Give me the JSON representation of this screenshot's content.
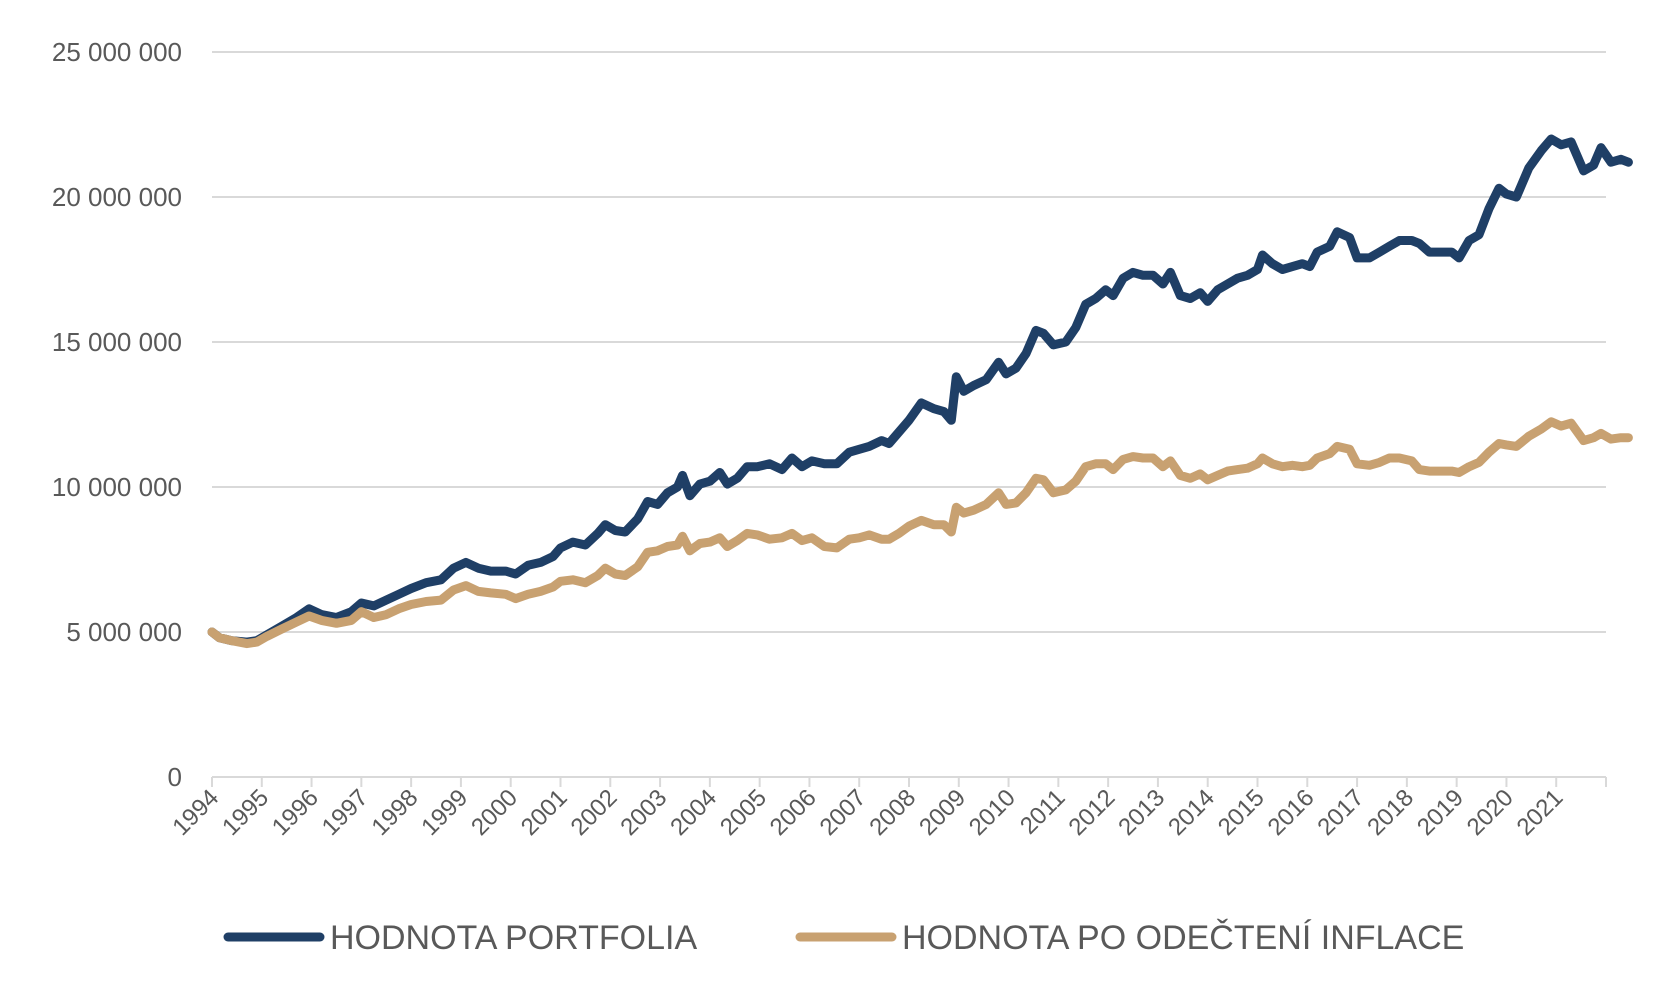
{
  "chart_data": {
    "type": "line",
    "title": "",
    "xlabel": "",
    "ylabel": "",
    "ylim": [
      0,
      25000000
    ],
    "xlim": [
      1994,
      2022
    ],
    "y_ticks": [
      0,
      5000000,
      10000000,
      15000000,
      20000000,
      25000000
    ],
    "y_tick_labels": [
      "0",
      "5 000 000",
      "10 000 000",
      "15 000 000",
      "20 000 000",
      "25 000 000"
    ],
    "x_ticks": [
      1994,
      1995,
      1996,
      1997,
      1998,
      1999,
      2000,
      2001,
      2002,
      2003,
      2004,
      2005,
      2006,
      2007,
      2008,
      2009,
      2010,
      2011,
      2012,
      2013,
      2014,
      2015,
      2016,
      2017,
      2018,
      2019,
      2020,
      2021
    ],
    "x_tick_labels": [
      "1994",
      "1995",
      "1996",
      "1997",
      "1998",
      "1999",
      "2000",
      "2001",
      "2002",
      "2003",
      "2004",
      "2005",
      "2006",
      "2007",
      "2008",
      "2009",
      "2010",
      "2011",
      "2012",
      "2013",
      "2014",
      "2015",
      "2016",
      "2017",
      "2018",
      "2019",
      "2020",
      "2021"
    ],
    "grid": true,
    "legend_position": "bottom",
    "series": [
      {
        "name": "HODNOTA PORTFOLIA",
        "color": "#1f3f66",
        "points": [
          [
            1994.0,
            5000000
          ],
          [
            1994.15,
            4800000
          ],
          [
            1994.4,
            4700000
          ],
          [
            1994.7,
            4650000
          ],
          [
            1994.9,
            4700000
          ],
          [
            1995.1,
            4900000
          ],
          [
            1995.4,
            5200000
          ],
          [
            1995.7,
            5500000
          ],
          [
            1995.95,
            5800000
          ],
          [
            1996.2,
            5600000
          ],
          [
            1996.5,
            5500000
          ],
          [
            1996.8,
            5700000
          ],
          [
            1997.0,
            6000000
          ],
          [
            1997.25,
            5900000
          ],
          [
            1997.5,
            6100000
          ],
          [
            1997.75,
            6300000
          ],
          [
            1998.0,
            6500000
          ],
          [
            1998.3,
            6700000
          ],
          [
            1998.6,
            6800000
          ],
          [
            1998.85,
            7200000
          ],
          [
            1999.1,
            7400000
          ],
          [
            1999.35,
            7200000
          ],
          [
            1999.6,
            7100000
          ],
          [
            1999.9,
            7100000
          ],
          [
            2000.1,
            7000000
          ],
          [
            2000.35,
            7300000
          ],
          [
            2000.6,
            7400000
          ],
          [
            2000.85,
            7600000
          ],
          [
            2001.0,
            7900000
          ],
          [
            2001.25,
            8100000
          ],
          [
            2001.5,
            8000000
          ],
          [
            2001.75,
            8400000
          ],
          [
            2001.9,
            8700000
          ],
          [
            2002.1,
            8500000
          ],
          [
            2002.3,
            8450000
          ],
          [
            2002.55,
            8900000
          ],
          [
            2002.75,
            9500000
          ],
          [
            2002.95,
            9400000
          ],
          [
            2003.15,
            9800000
          ],
          [
            2003.35,
            10000000
          ],
          [
            2003.45,
            10400000
          ],
          [
            2003.6,
            9700000
          ],
          [
            2003.8,
            10100000
          ],
          [
            2004.0,
            10200000
          ],
          [
            2004.2,
            10500000
          ],
          [
            2004.35,
            10100000
          ],
          [
            2004.55,
            10300000
          ],
          [
            2004.75,
            10700000
          ],
          [
            2004.95,
            10700000
          ],
          [
            2005.2,
            10800000
          ],
          [
            2005.45,
            10600000
          ],
          [
            2005.65,
            11000000
          ],
          [
            2005.85,
            10700000
          ],
          [
            2006.05,
            10900000
          ],
          [
            2006.3,
            10800000
          ],
          [
            2006.55,
            10800000
          ],
          [
            2006.8,
            11200000
          ],
          [
            2007.0,
            11300000
          ],
          [
            2007.2,
            11400000
          ],
          [
            2007.45,
            11600000
          ],
          [
            2007.6,
            11500000
          ],
          [
            2007.8,
            11900000
          ],
          [
            2008.0,
            12300000
          ],
          [
            2008.25,
            12900000
          ],
          [
            2008.5,
            12700000
          ],
          [
            2008.7,
            12600000
          ],
          [
            2008.85,
            12300000
          ],
          [
            2008.95,
            13800000
          ],
          [
            2009.1,
            13300000
          ],
          [
            2009.3,
            13500000
          ],
          [
            2009.55,
            13700000
          ],
          [
            2009.8,
            14300000
          ],
          [
            2009.95,
            13900000
          ],
          [
            2010.15,
            14100000
          ],
          [
            2010.35,
            14600000
          ],
          [
            2010.55,
            15400000
          ],
          [
            2010.7,
            15300000
          ],
          [
            2010.9,
            14900000
          ],
          [
            2011.15,
            15000000
          ],
          [
            2011.35,
            15500000
          ],
          [
            2011.55,
            16300000
          ],
          [
            2011.75,
            16500000
          ],
          [
            2011.95,
            16800000
          ],
          [
            2012.1,
            16600000
          ],
          [
            2012.3,
            17200000
          ],
          [
            2012.5,
            17400000
          ],
          [
            2012.7,
            17300000
          ],
          [
            2012.9,
            17300000
          ],
          [
            2013.1,
            17000000
          ],
          [
            2013.25,
            17400000
          ],
          [
            2013.45,
            16600000
          ],
          [
            2013.65,
            16500000
          ],
          [
            2013.85,
            16700000
          ],
          [
            2014.0,
            16400000
          ],
          [
            2014.2,
            16800000
          ],
          [
            2014.4,
            17000000
          ],
          [
            2014.6,
            17200000
          ],
          [
            2014.8,
            17300000
          ],
          [
            2015.0,
            17500000
          ],
          [
            2015.1,
            18000000
          ],
          [
            2015.3,
            17700000
          ],
          [
            2015.5,
            17500000
          ],
          [
            2015.7,
            17600000
          ],
          [
            2015.9,
            17700000
          ],
          [
            2016.05,
            17600000
          ],
          [
            2016.2,
            18100000
          ],
          [
            2016.45,
            18300000
          ],
          [
            2016.6,
            18800000
          ],
          [
            2016.85,
            18600000
          ],
          [
            2017.0,
            17900000
          ],
          [
            2017.25,
            17900000
          ],
          [
            2017.45,
            18100000
          ],
          [
            2017.65,
            18300000
          ],
          [
            2017.85,
            18500000
          ],
          [
            2018.1,
            18500000
          ],
          [
            2018.25,
            18400000
          ],
          [
            2018.45,
            18100000
          ],
          [
            2018.7,
            18100000
          ],
          [
            2018.9,
            18100000
          ],
          [
            2019.05,
            17900000
          ],
          [
            2019.25,
            18500000
          ],
          [
            2019.45,
            18700000
          ],
          [
            2019.65,
            19600000
          ],
          [
            2019.85,
            20300000
          ],
          [
            2020.0,
            20100000
          ],
          [
            2020.2,
            20000000
          ],
          [
            2020.45,
            21000000
          ],
          [
            2020.7,
            21600000
          ],
          [
            2020.9,
            22000000
          ],
          [
            2021.1,
            21800000
          ],
          [
            2021.3,
            21900000
          ],
          [
            2021.55,
            20900000
          ],
          [
            2021.75,
            21100000
          ],
          [
            2021.9,
            21700000
          ],
          [
            2022.1,
            21200000
          ],
          [
            2022.3,
            21300000
          ],
          [
            2022.45,
            21200000
          ]
        ]
      },
      {
        "name": "HODNOTA PO ODEČTENÍ INFLACE",
        "color": "#c8a171",
        "points": [
          [
            1994.0,
            5000000
          ],
          [
            1994.15,
            4800000
          ],
          [
            1994.4,
            4700000
          ],
          [
            1994.7,
            4600000
          ],
          [
            1994.9,
            4650000
          ],
          [
            1995.1,
            4850000
          ],
          [
            1995.4,
            5100000
          ],
          [
            1995.7,
            5350000
          ],
          [
            1995.95,
            5550000
          ],
          [
            1996.2,
            5400000
          ],
          [
            1996.5,
            5300000
          ],
          [
            1996.8,
            5400000
          ],
          [
            1997.0,
            5700000
          ],
          [
            1997.25,
            5500000
          ],
          [
            1997.5,
            5600000
          ],
          [
            1997.75,
            5800000
          ],
          [
            1998.0,
            5950000
          ],
          [
            1998.3,
            6050000
          ],
          [
            1998.6,
            6100000
          ],
          [
            1998.85,
            6450000
          ],
          [
            1999.1,
            6600000
          ],
          [
            1999.35,
            6400000
          ],
          [
            1999.6,
            6350000
          ],
          [
            1999.9,
            6300000
          ],
          [
            2000.1,
            6150000
          ],
          [
            2000.35,
            6300000
          ],
          [
            2000.6,
            6400000
          ],
          [
            2000.85,
            6550000
          ],
          [
            2001.0,
            6750000
          ],
          [
            2001.25,
            6800000
          ],
          [
            2001.5,
            6700000
          ],
          [
            2001.75,
            6950000
          ],
          [
            2001.9,
            7200000
          ],
          [
            2002.1,
            7000000
          ],
          [
            2002.3,
            6950000
          ],
          [
            2002.55,
            7250000
          ],
          [
            2002.75,
            7750000
          ],
          [
            2002.95,
            7800000
          ],
          [
            2003.15,
            7950000
          ],
          [
            2003.35,
            8000000
          ],
          [
            2003.45,
            8300000
          ],
          [
            2003.6,
            7800000
          ],
          [
            2003.8,
            8050000
          ],
          [
            2004.0,
            8100000
          ],
          [
            2004.2,
            8250000
          ],
          [
            2004.35,
            7950000
          ],
          [
            2004.55,
            8150000
          ],
          [
            2004.75,
            8400000
          ],
          [
            2004.95,
            8350000
          ],
          [
            2005.2,
            8200000
          ],
          [
            2005.45,
            8250000
          ],
          [
            2005.65,
            8400000
          ],
          [
            2005.85,
            8150000
          ],
          [
            2006.05,
            8250000
          ],
          [
            2006.3,
            7950000
          ],
          [
            2006.55,
            7900000
          ],
          [
            2006.8,
            8200000
          ],
          [
            2007.0,
            8250000
          ],
          [
            2007.2,
            8350000
          ],
          [
            2007.45,
            8200000
          ],
          [
            2007.6,
            8200000
          ],
          [
            2007.8,
            8400000
          ],
          [
            2008.0,
            8650000
          ],
          [
            2008.25,
            8850000
          ],
          [
            2008.5,
            8700000
          ],
          [
            2008.7,
            8700000
          ],
          [
            2008.85,
            8450000
          ],
          [
            2008.95,
            9300000
          ],
          [
            2009.1,
            9100000
          ],
          [
            2009.3,
            9200000
          ],
          [
            2009.55,
            9400000
          ],
          [
            2009.8,
            9800000
          ],
          [
            2009.95,
            9400000
          ],
          [
            2010.15,
            9450000
          ],
          [
            2010.35,
            9800000
          ],
          [
            2010.55,
            10300000
          ],
          [
            2010.7,
            10250000
          ],
          [
            2010.9,
            9800000
          ],
          [
            2011.15,
            9900000
          ],
          [
            2011.35,
            10200000
          ],
          [
            2011.55,
            10700000
          ],
          [
            2011.75,
            10800000
          ],
          [
            2011.95,
            10800000
          ],
          [
            2012.1,
            10600000
          ],
          [
            2012.3,
            10950000
          ],
          [
            2012.5,
            11050000
          ],
          [
            2012.7,
            11000000
          ],
          [
            2012.9,
            11000000
          ],
          [
            2013.1,
            10700000
          ],
          [
            2013.25,
            10900000
          ],
          [
            2013.45,
            10400000
          ],
          [
            2013.65,
            10300000
          ],
          [
            2013.85,
            10450000
          ],
          [
            2014.0,
            10250000
          ],
          [
            2014.2,
            10400000
          ],
          [
            2014.4,
            10550000
          ],
          [
            2014.6,
            10600000
          ],
          [
            2014.8,
            10650000
          ],
          [
            2015.0,
            10800000
          ],
          [
            2015.1,
            11000000
          ],
          [
            2015.3,
            10800000
          ],
          [
            2015.5,
            10700000
          ],
          [
            2015.7,
            10750000
          ],
          [
            2015.9,
            10700000
          ],
          [
            2016.05,
            10750000
          ],
          [
            2016.2,
            11000000
          ],
          [
            2016.45,
            11150000
          ],
          [
            2016.6,
            11400000
          ],
          [
            2016.85,
            11300000
          ],
          [
            2017.0,
            10800000
          ],
          [
            2017.25,
            10750000
          ],
          [
            2017.45,
            10850000
          ],
          [
            2017.65,
            11000000
          ],
          [
            2017.85,
            11000000
          ],
          [
            2018.1,
            10900000
          ],
          [
            2018.25,
            10600000
          ],
          [
            2018.45,
            10550000
          ],
          [
            2018.7,
            10550000
          ],
          [
            2018.9,
            10550000
          ],
          [
            2019.05,
            10500000
          ],
          [
            2019.25,
            10700000
          ],
          [
            2019.45,
            10850000
          ],
          [
            2019.65,
            11200000
          ],
          [
            2019.85,
            11500000
          ],
          [
            2020.0,
            11450000
          ],
          [
            2020.2,
            11400000
          ],
          [
            2020.45,
            11750000
          ],
          [
            2020.7,
            12000000
          ],
          [
            2020.9,
            12250000
          ],
          [
            2021.1,
            12100000
          ],
          [
            2021.3,
            12200000
          ],
          [
            2021.55,
            11600000
          ],
          [
            2021.75,
            11700000
          ],
          [
            2021.9,
            11850000
          ],
          [
            2022.1,
            11650000
          ],
          [
            2022.3,
            11700000
          ],
          [
            2022.45,
            11700000
          ]
        ]
      }
    ]
  },
  "legend": {
    "items": [
      {
        "label": "HODNOTA PORTFOLIA",
        "color": "#1f3f66"
      },
      {
        "label": "HODNOTA PO ODEČTENÍ INFLACE",
        "color": "#c8a171"
      }
    ]
  }
}
